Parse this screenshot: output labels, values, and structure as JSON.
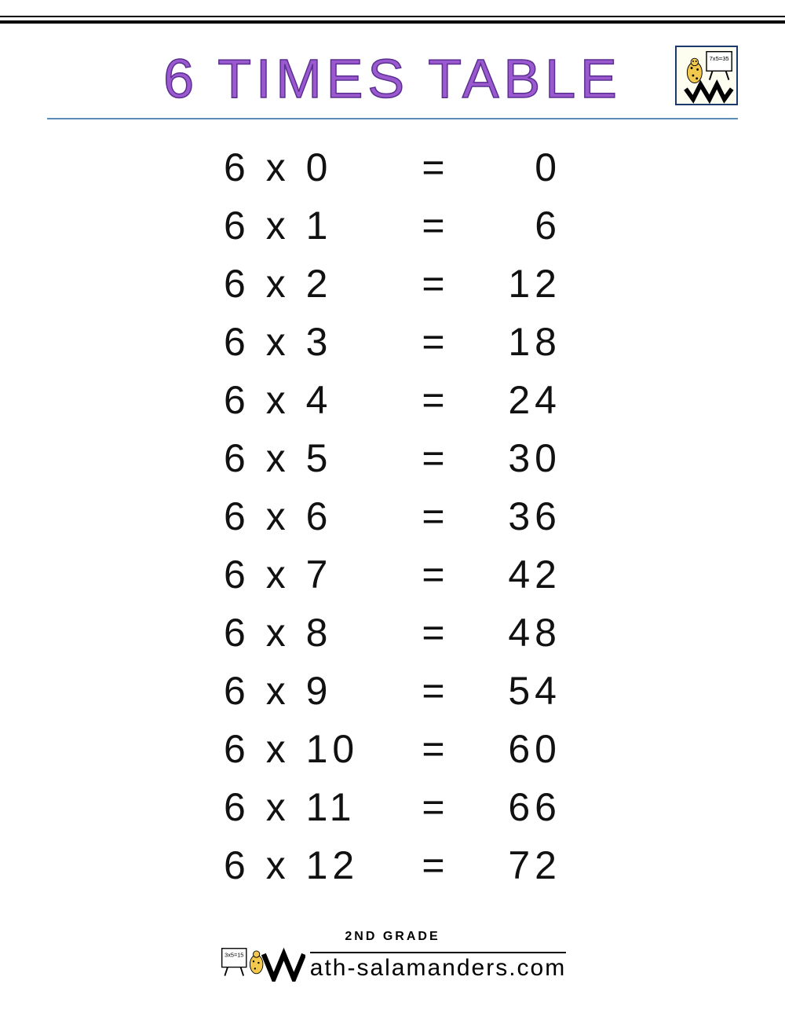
{
  "title": "6 TIMES TABLE",
  "title_color": "#9b59d0",
  "title_outline": "#5a2e91",
  "title_fontsize": 70,
  "underline_color": "#5b8db8",
  "text_color": "#111111",
  "row_fontsize": 50,
  "background_color": "#ffffff",
  "multiplicand": 6,
  "multiply_symbol": "x",
  "equals_symbol": "=",
  "rows": [
    {
      "a": 6,
      "b": 0,
      "result": 0
    },
    {
      "a": 6,
      "b": 1,
      "result": 6
    },
    {
      "a": 6,
      "b": 2,
      "result": 12
    },
    {
      "a": 6,
      "b": 3,
      "result": 18
    },
    {
      "a": 6,
      "b": 4,
      "result": 24
    },
    {
      "a": 6,
      "b": 5,
      "result": 30
    },
    {
      "a": 6,
      "b": 6,
      "result": 36
    },
    {
      "a": 6,
      "b": 7,
      "result": 42
    },
    {
      "a": 6,
      "b": 8,
      "result": 48
    },
    {
      "a": 6,
      "b": 9,
      "result": 54
    },
    {
      "a": 6,
      "b": 10,
      "result": 60
    },
    {
      "a": 6,
      "b": 11,
      "result": 66
    },
    {
      "a": 6,
      "b": 12,
      "result": 72
    }
  ],
  "logo": {
    "border_color": "#1a3a6e",
    "bg_color": "#fdfdf0",
    "board_text": "7x5=35",
    "salamander_color": "#f2c94c",
    "spots_color": "#000000",
    "m_color": "#000000"
  },
  "footer": {
    "grade_label": "2ND GRADE",
    "site_name": "ath-salamanders.com",
    "board_text": "3x5=15",
    "salamander_color": "#f2c94c",
    "m_color": "#000000"
  }
}
